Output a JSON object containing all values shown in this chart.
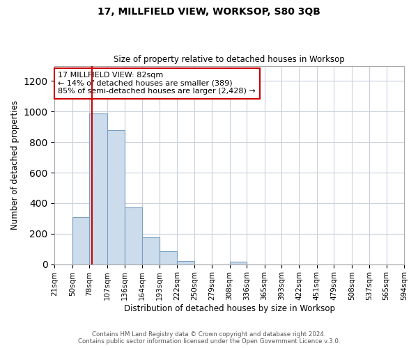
{
  "title": "17, MILLFIELD VIEW, WORKSOP, S80 3QB",
  "subtitle": "Size of property relative to detached houses in Worksop",
  "xlabel": "Distribution of detached houses by size in Worksop",
  "ylabel": "Number of detached properties",
  "bar_color": "#ccdcec",
  "bar_edge_color": "#7aa0c0",
  "background_color": "#ffffff",
  "grid_color": "#c8d0dc",
  "bin_edges": [
    21,
    50,
    78,
    107,
    136,
    164,
    193,
    222,
    250,
    279,
    308,
    336,
    365,
    393,
    422,
    451,
    479,
    508,
    537,
    565,
    594
  ],
  "bin_labels": [
    "21sqm",
    "50sqm",
    "78sqm",
    "107sqm",
    "136sqm",
    "164sqm",
    "193sqm",
    "222sqm",
    "250sqm",
    "279sqm",
    "308sqm",
    "336sqm",
    "365sqm",
    "393sqm",
    "422sqm",
    "451sqm",
    "479sqm",
    "508sqm",
    "537sqm",
    "565sqm",
    "594sqm"
  ],
  "bar_heights": [
    0,
    310,
    990,
    880,
    370,
    175,
    85,
    22,
    0,
    0,
    18,
    0,
    0,
    0,
    0,
    0,
    0,
    0,
    0,
    0
  ],
  "ylim": [
    0,
    1300
  ],
  "yticks": [
    0,
    200,
    400,
    600,
    800,
    1000,
    1200
  ],
  "property_sqm": 82,
  "annotation_title": "17 MILLFIELD VIEW: 82sqm",
  "annotation_line1": "← 14% of detached houses are smaller (389)",
  "annotation_line2": "85% of semi-detached houses are larger (2,428) →",
  "annotation_box_color": "#ffffff",
  "annotation_box_edge_color": "#cc0000",
  "vline_color": "#cc0000",
  "footer1": "Contains HM Land Registry data © Crown copyright and database right 2024.",
  "footer2": "Contains public sector information licensed under the Open Government Licence v.3.0."
}
